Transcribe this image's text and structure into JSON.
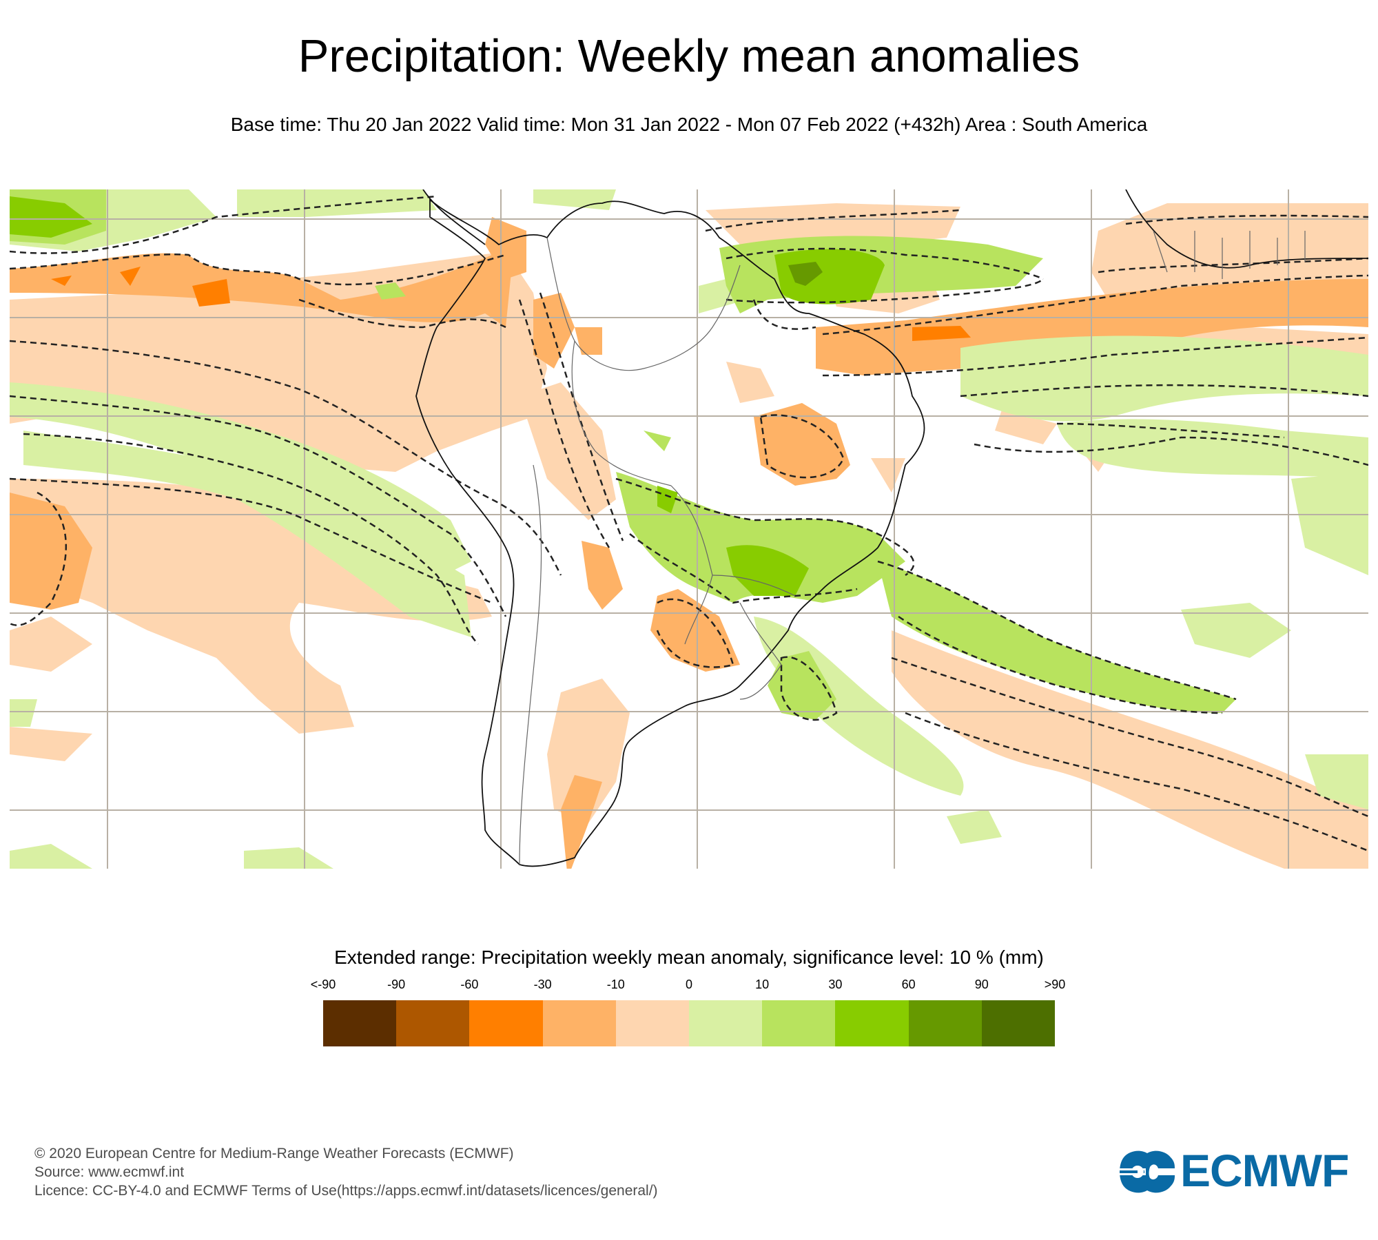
{
  "header": {
    "title": "Precipitation: Weekly mean anomalies",
    "subtitle": "Base time: Thu 20 Jan 2022 Valid time: Mon 31 Jan 2022 - Mon 07 Feb 2022 (+432h) Area : South America"
  },
  "map": {
    "area": "South America",
    "significance_contour": "dashed",
    "colors": {
      "ocean_background": "#ffffff",
      "coastline": "#000000",
      "border": "#555555",
      "gridline": "#b8b0a4",
      "significance": "#222222"
    }
  },
  "legend": {
    "title": "Extended range: Precipitation weekly mean anomaly, significance level: 10 % (mm)",
    "tick_labels": [
      "<-90",
      "-90",
      "-60",
      "-30",
      "-10",
      "0",
      "10",
      "30",
      "60",
      "90",
      ">90"
    ],
    "colors": [
      "#5c2e00",
      "#ad5700",
      "#ff7f00",
      "#feb266",
      "#fed6b0",
      "#d9f0a3",
      "#b8e35e",
      "#88cc00",
      "#669900",
      "#4d6f00"
    ]
  },
  "footer": {
    "copyright": "© 2020 European Centre for Medium-Range Weather Forecasts (ECMWF)",
    "source": "Source: www.ecmwf.int",
    "licence": "Licence: CC-BY-4.0 and ECMWF Terms of Use(https://apps.ecmwf.int/datasets/licences/general/)"
  },
  "logo": {
    "text": "ECMWF",
    "color": "#0a6aa5"
  }
}
